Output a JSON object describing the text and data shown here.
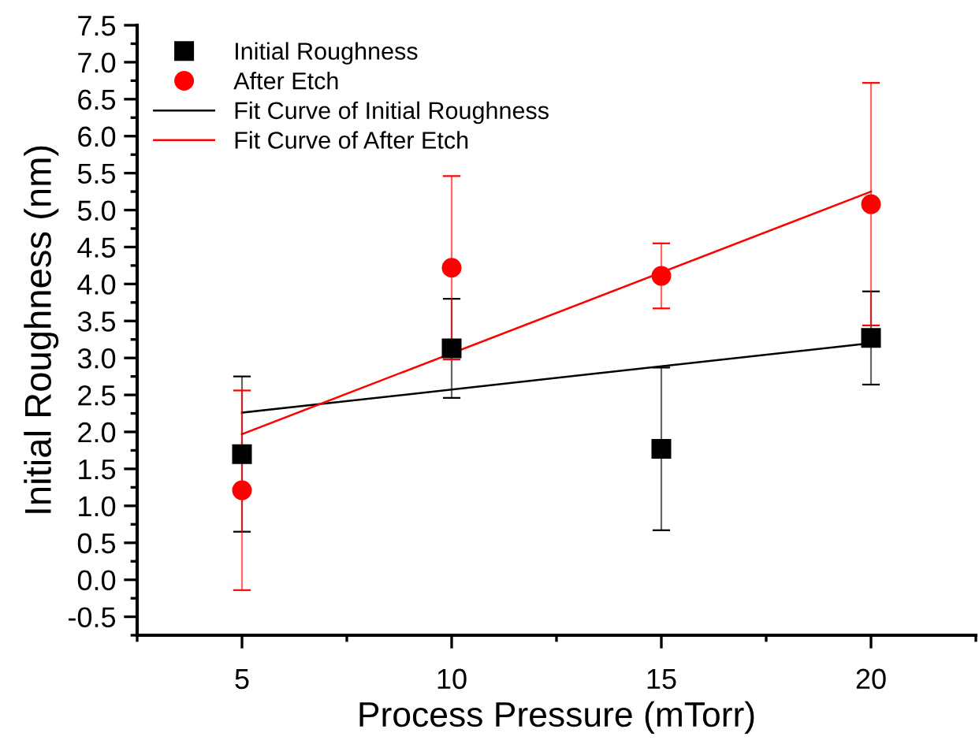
{
  "chart_data": {
    "type": "scatter",
    "xlabel": "Process Pressure (mTorr)",
    "ylabel": "Initial Roughness (nm)",
    "xlim": [
      2.5,
      22.5
    ],
    "xticks": [
      5,
      10,
      15,
      20
    ],
    "ylim": [
      -0.75,
      7.5
    ],
    "yticks": [
      {
        "value": -0.5,
        "label": "-0.5"
      },
      {
        "value": 0,
        "label": "0.0"
      },
      {
        "value": 0.5,
        "label": "0.5"
      },
      {
        "value": 1,
        "label": "1.0"
      },
      {
        "value": 1.5,
        "label": "1.5"
      },
      {
        "value": 2,
        "label": "2.0"
      },
      {
        "value": 2.5,
        "label": "2.5"
      },
      {
        "value": 3,
        "label": "3.0"
      },
      {
        "value": 3.5,
        "label": "3.5"
      },
      {
        "value": 4,
        "label": "4.0"
      },
      {
        "value": 4.5,
        "label": "4.5"
      },
      {
        "value": 5,
        "label": "5.0"
      },
      {
        "value": 5.5,
        "label": "5.5"
      },
      {
        "value": 6,
        "label": "6.0"
      },
      {
        "value": 6.5,
        "label": "6.5"
      },
      {
        "value": 7,
        "label": "7.0"
      },
      {
        "value": 7.5,
        "label": "7.5"
      }
    ],
    "grid": false,
    "legend": "top left",
    "series": [
      {
        "name": "Initial Roughness",
        "marker": "square",
        "color": "#000000",
        "x": [
          5,
          10,
          15,
          20
        ],
        "values": [
          1.7,
          3.13,
          1.77,
          3.27
        ],
        "errors": [
          1.05,
          0.67,
          1.1,
          0.63
        ]
      },
      {
        "name": "After Etch",
        "marker": "circle",
        "color": "#ff0000",
        "x": [
          5,
          10,
          15,
          20
        ],
        "values": [
          1.21,
          4.22,
          4.11,
          5.08
        ],
        "errors": [
          1.35,
          1.24,
          0.44,
          1.64
        ]
      },
      {
        "name": "Fit Curve of Initial Roughness",
        "type": "line",
        "marker": "none",
        "line_style": "solid",
        "color": "#000000",
        "x": [
          5,
          20
        ],
        "values": [
          2.26,
          3.2
        ]
      },
      {
        "name": "Fit Curve of After Etch",
        "type": "line",
        "marker": "none",
        "line_style": "solid",
        "color": "#ff0000",
        "x": [
          5,
          20
        ],
        "values": [
          1.97,
          5.25
        ]
      }
    ]
  }
}
